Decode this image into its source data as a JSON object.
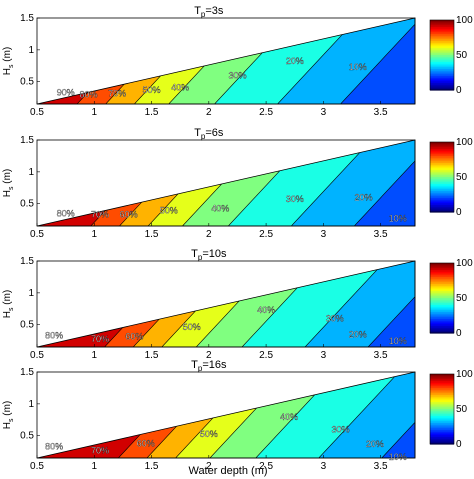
{
  "xlabel": "Water depth (m)",
  "ylabel_main": "H",
  "ylabel_sub": "s",
  "ylabel_unit": "(m)",
  "title_main": "T",
  "title_sub": "p",
  "colormap": [
    "#00008f",
    "#0000ff",
    "#0080ff",
    "#00ffff",
    "#80ff80",
    "#ffff00",
    "#ff8000",
    "#ff0000",
    "#800000"
  ],
  "chart_data": [
    {
      "type": "contour",
      "title_value": "=3s",
      "x_ticks": [
        "0.5",
        "1",
        "1.5",
        "2",
        "2.5",
        "3",
        "3.5"
      ],
      "y_ticks": [
        "0.5",
        "1",
        "1.5"
      ],
      "xlim": [
        0.5,
        3.8
      ],
      "ylim": [
        0.15,
        1.5
      ],
      "colorbar": {
        "range": [
          0,
          100
        ],
        "ticks": [
          "0",
          "50",
          "100"
        ]
      },
      "contour_labels": [
        {
          "text": "90%",
          "x": 0.75,
          "y": 0.28
        },
        {
          "text": "80%",
          "x": 0.95,
          "y": 0.25
        },
        {
          "text": "70%",
          "x": 1.2,
          "y": 0.27
        },
        {
          "text": "50%",
          "x": 1.5,
          "y": 0.32
        },
        {
          "text": "40%",
          "x": 1.75,
          "y": 0.36
        },
        {
          "text": "30%",
          "x": 2.25,
          "y": 0.55
        },
        {
          "text": "20%",
          "x": 2.75,
          "y": 0.78
        },
        {
          "text": "10%",
          "x": 3.3,
          "y": 0.68
        }
      ]
    },
    {
      "type": "contour",
      "title_value": "=6s",
      "x_ticks": [
        "0.5",
        "1",
        "1.5",
        "2",
        "2.5",
        "3",
        "3.5"
      ],
      "y_ticks": [
        "0.5",
        "1",
        "1.5"
      ],
      "xlim": [
        0.5,
        3.8
      ],
      "ylim": [
        0.15,
        1.5
      ],
      "colorbar": {
        "range": [
          0,
          100
        ],
        "ticks": [
          "0",
          "50",
          "100"
        ]
      },
      "contour_labels": [
        {
          "text": "80%",
          "x": 0.75,
          "y": 0.3
        },
        {
          "text": "70%",
          "x": 1.05,
          "y": 0.28
        },
        {
          "text": "60%",
          "x": 1.3,
          "y": 0.28
        },
        {
          "text": "50%",
          "x": 1.65,
          "y": 0.35
        },
        {
          "text": "40%",
          "x": 2.1,
          "y": 0.38
        },
        {
          "text": "30%",
          "x": 2.75,
          "y": 0.53
        },
        {
          "text": "20%",
          "x": 3.35,
          "y": 0.55
        },
        {
          "text": "10%",
          "x": 3.65,
          "y": 0.22
        }
      ]
    },
    {
      "type": "contour",
      "title_value": "=10s",
      "x_ticks": [
        "0.5",
        "1",
        "1.5",
        "2",
        "2.5",
        "3",
        "3.5"
      ],
      "y_ticks": [
        "0.5",
        "1",
        "1.5"
      ],
      "xlim": [
        0.5,
        3.8
      ],
      "ylim": [
        0.15,
        1.5
      ],
      "colorbar": {
        "range": [
          0,
          100
        ],
        "ticks": [
          "0",
          "50",
          "100"
        ]
      },
      "contour_labels": [
        {
          "text": "80%",
          "x": 0.65,
          "y": 0.28
        },
        {
          "text": "70%",
          "x": 1.05,
          "y": 0.23
        },
        {
          "text": "60%",
          "x": 1.35,
          "y": 0.27
        },
        {
          "text": "50%",
          "x": 1.85,
          "y": 0.42
        },
        {
          "text": "40%",
          "x": 2.5,
          "y": 0.68
        },
        {
          "text": "30%",
          "x": 3.1,
          "y": 0.55
        },
        {
          "text": "20%",
          "x": 3.3,
          "y": 0.3
        },
        {
          "text": "10%",
          "x": 3.65,
          "y": 0.2
        }
      ]
    },
    {
      "type": "contour",
      "title_value": "=16s",
      "x_ticks": [
        "0.5",
        "1",
        "1.5",
        "2",
        "2.5",
        "3",
        "3.5"
      ],
      "y_ticks": [
        "0.5",
        "1",
        "1.5"
      ],
      "xlim": [
        0.5,
        3.8
      ],
      "ylim": [
        0.15,
        1.5
      ],
      "colorbar": {
        "range": [
          0,
          100
        ],
        "ticks": [
          "0",
          "50",
          "100"
        ]
      },
      "contour_labels": [
        {
          "text": "80%",
          "x": 0.65,
          "y": 0.28
        },
        {
          "text": "70%",
          "x": 1.05,
          "y": 0.22
        },
        {
          "text": "60%",
          "x": 1.45,
          "y": 0.33
        },
        {
          "text": "50%",
          "x": 2.0,
          "y": 0.48
        },
        {
          "text": "40%",
          "x": 2.7,
          "y": 0.75
        },
        {
          "text": "30%",
          "x": 3.15,
          "y": 0.55
        },
        {
          "text": "20%",
          "x": 3.45,
          "y": 0.32
        },
        {
          "text": "10%",
          "x": 3.65,
          "y": 0.12
        }
      ]
    }
  ]
}
